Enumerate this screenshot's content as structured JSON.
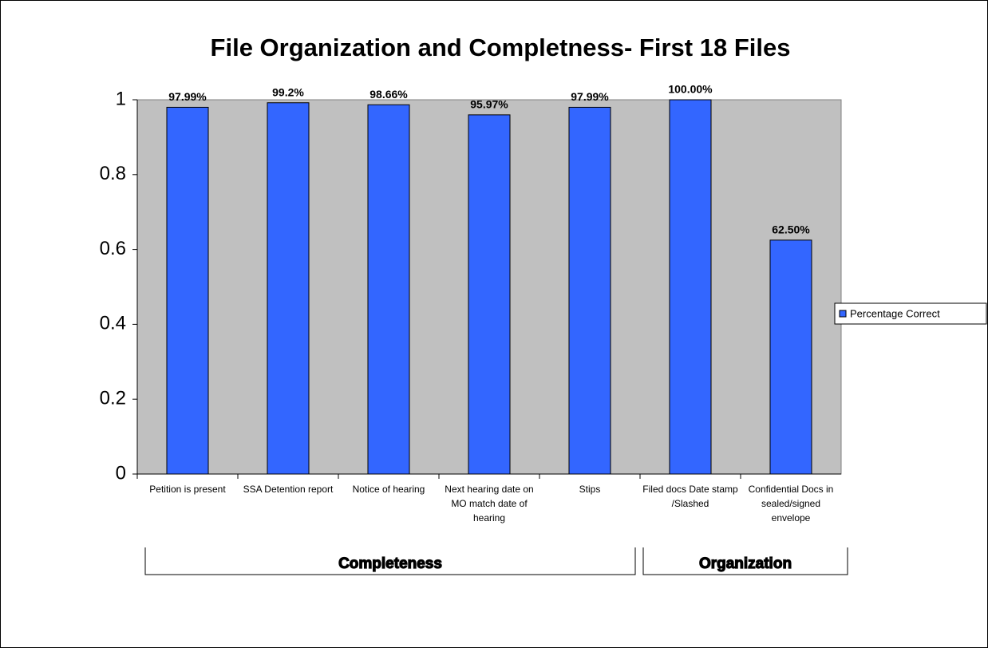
{
  "chart_data": {
    "type": "bar",
    "title": "File Organization and Completness- First 18 Files",
    "categories": [
      "Petition is present",
      "SSA Detention report",
      "Notice of hearing",
      "Next hearing date on MO match date of hearing",
      "Stips",
      "Filed docs Date stamp /Slashed",
      "Confidential Docs in sealed/signed envelope"
    ],
    "series": [
      {
        "name": "Percentage Correct",
        "color": "#3366ff",
        "values": [
          0.9799,
          0.992,
          0.9866,
          0.9597,
          0.9799,
          1.0,
          0.625
        ],
        "value_labels": [
          "97.99%",
          "99.2%",
          "98.66%",
          "95.97%",
          "97.99%",
          "100.00%",
          "62.50%"
        ]
      }
    ],
    "x_groups": [
      "Completeness",
      "Organization"
    ],
    "ylim": [
      0,
      1
    ],
    "yticks": [
      0,
      0.2,
      0.4,
      0.6,
      0.8,
      1
    ],
    "legend": "right"
  }
}
